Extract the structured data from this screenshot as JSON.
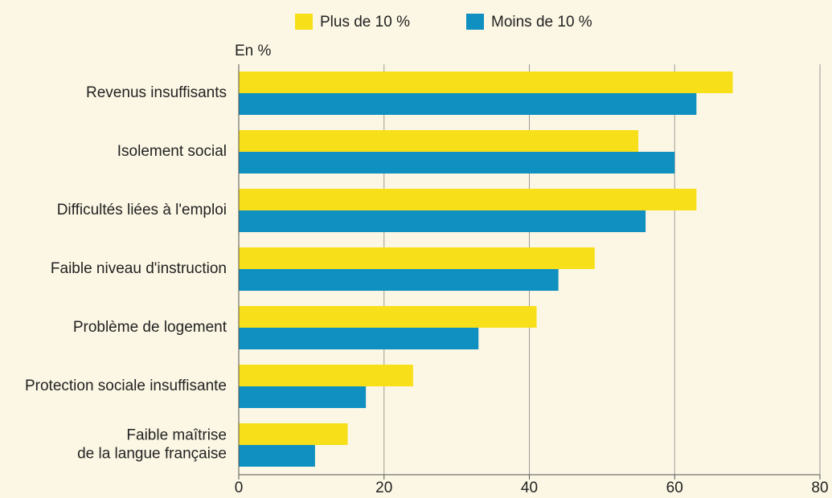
{
  "chart_data": {
    "type": "bar",
    "orientation": "horizontal",
    "axis_label": "En %",
    "categories": [
      "Revenus insuffisants",
      "Isolement social",
      "Difficultés liées à l'emploi",
      "Faible niveau d'instruction",
      "Problème de logement",
      "Protection sociale insuffisante",
      "Faible maîtrise\nde la langue française"
    ],
    "series": [
      {
        "name": "Plus de 10 %",
        "color": "#f7e01a",
        "values": [
          68,
          55,
          63,
          49,
          41,
          24,
          15
        ]
      },
      {
        "name": "Moins de 10 %",
        "color": "#1090c0",
        "values": [
          63,
          60,
          56,
          44,
          33,
          17.5,
          10.5
        ]
      }
    ],
    "xlim": [
      0,
      80
    ],
    "xticks": [
      0,
      20,
      40,
      60,
      80
    ],
    "grid": true
  }
}
